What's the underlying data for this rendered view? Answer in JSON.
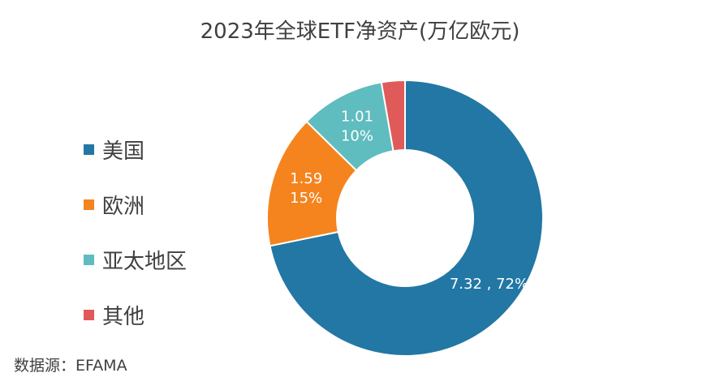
{
  "title": "2023年全球ETF净资产(万亿欧元)",
  "source": "数据源：EFAMA",
  "chart_data": {
    "type": "pie",
    "variant": "donut",
    "title": "2023年全球ETF净资产(万亿欧元)",
    "legend_position": "left",
    "categories": [
      "美国",
      "欧洲",
      "亚太地区",
      "其他"
    ],
    "values": [
      7.32,
      1.59,
      1.01,
      0.28
    ],
    "percents": [
      "72%",
      "15%",
      "10%",
      "3%"
    ],
    "colors": [
      "#2277A4",
      "#F5841F",
      "#5FBCBF",
      "#E05A5A"
    ],
    "labels": [
      {
        "lines": [
          "7.32 , 72%"
        ]
      },
      {
        "lines": [
          "1.59",
          "15%"
        ]
      },
      {
        "lines": [
          "1.01",
          "10%"
        ]
      },
      {
        "lines": []
      }
    ]
  }
}
